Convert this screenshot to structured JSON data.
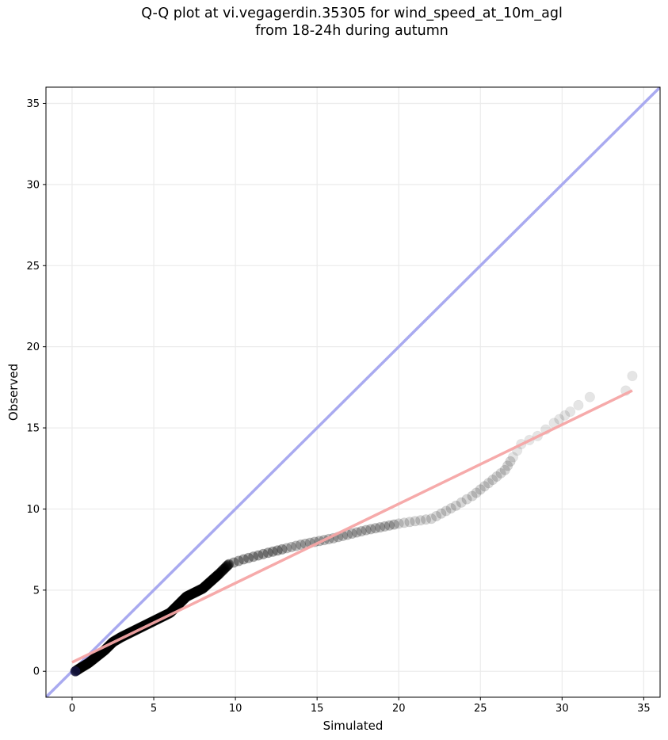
{
  "chart_data": {
    "type": "scatter",
    "title_line1": "Q-Q plot at vi.vegagerdin.35305 for wind_speed_at_10m_agl",
    "title_line2": "from 18-24h during autumn",
    "xlabel": "Simulated",
    "ylabel": "Observed",
    "xlim": [
      -1.6,
      36
    ],
    "ylim": [
      -1.6,
      36
    ],
    "xticks": [
      0,
      5,
      10,
      15,
      20,
      25,
      30,
      35
    ],
    "yticks": [
      0,
      5,
      10,
      15,
      20,
      25,
      30,
      35
    ],
    "grid": true,
    "colors": {
      "points": "#000000",
      "identity_line": "#a9aaf0",
      "fit_line": "#f5a5a5"
    },
    "identity_line": {
      "x": [
        -1.6,
        36
      ],
      "y": [
        -1.6,
        36
      ]
    },
    "fit_line": {
      "x": [
        0,
        34.3
      ],
      "y": [
        0.55,
        17.3
      ]
    },
    "qq_curve": [
      [
        0.2,
        0.0
      ],
      [
        0.5,
        0.2
      ],
      [
        1.0,
        0.5
      ],
      [
        1.5,
        0.9
      ],
      [
        2.0,
        1.3
      ],
      [
        2.5,
        1.8
      ],
      [
        3.0,
        2.1
      ],
      [
        4.0,
        2.6
      ],
      [
        5.0,
        3.1
      ],
      [
        6.0,
        3.6
      ],
      [
        6.5,
        4.1
      ],
      [
        7.0,
        4.6
      ],
      [
        8.0,
        5.1
      ],
      [
        9.0,
        6.0
      ],
      [
        9.6,
        6.6
      ],
      [
        10.5,
        6.9
      ],
      [
        12.0,
        7.3
      ],
      [
        14.0,
        7.8
      ],
      [
        16.0,
        8.2
      ],
      [
        18.0,
        8.7
      ],
      [
        20.0,
        9.1
      ],
      [
        22.0,
        9.4
      ],
      [
        23.5,
        10.2
      ],
      [
        24.5,
        10.8
      ],
      [
        25.5,
        11.6
      ],
      [
        26.5,
        12.4
      ],
      [
        27.0,
        13.2
      ],
      [
        27.5,
        14.0
      ],
      [
        28.5,
        14.5
      ],
      [
        29.0,
        14.9
      ],
      [
        29.5,
        15.3
      ],
      [
        30.5,
        16.0
      ]
    ],
    "tail_points": [
      [
        31.0,
        16.4
      ],
      [
        31.7,
        16.9
      ],
      [
        33.9,
        17.3
      ],
      [
        34.3,
        18.2
      ]
    ]
  }
}
